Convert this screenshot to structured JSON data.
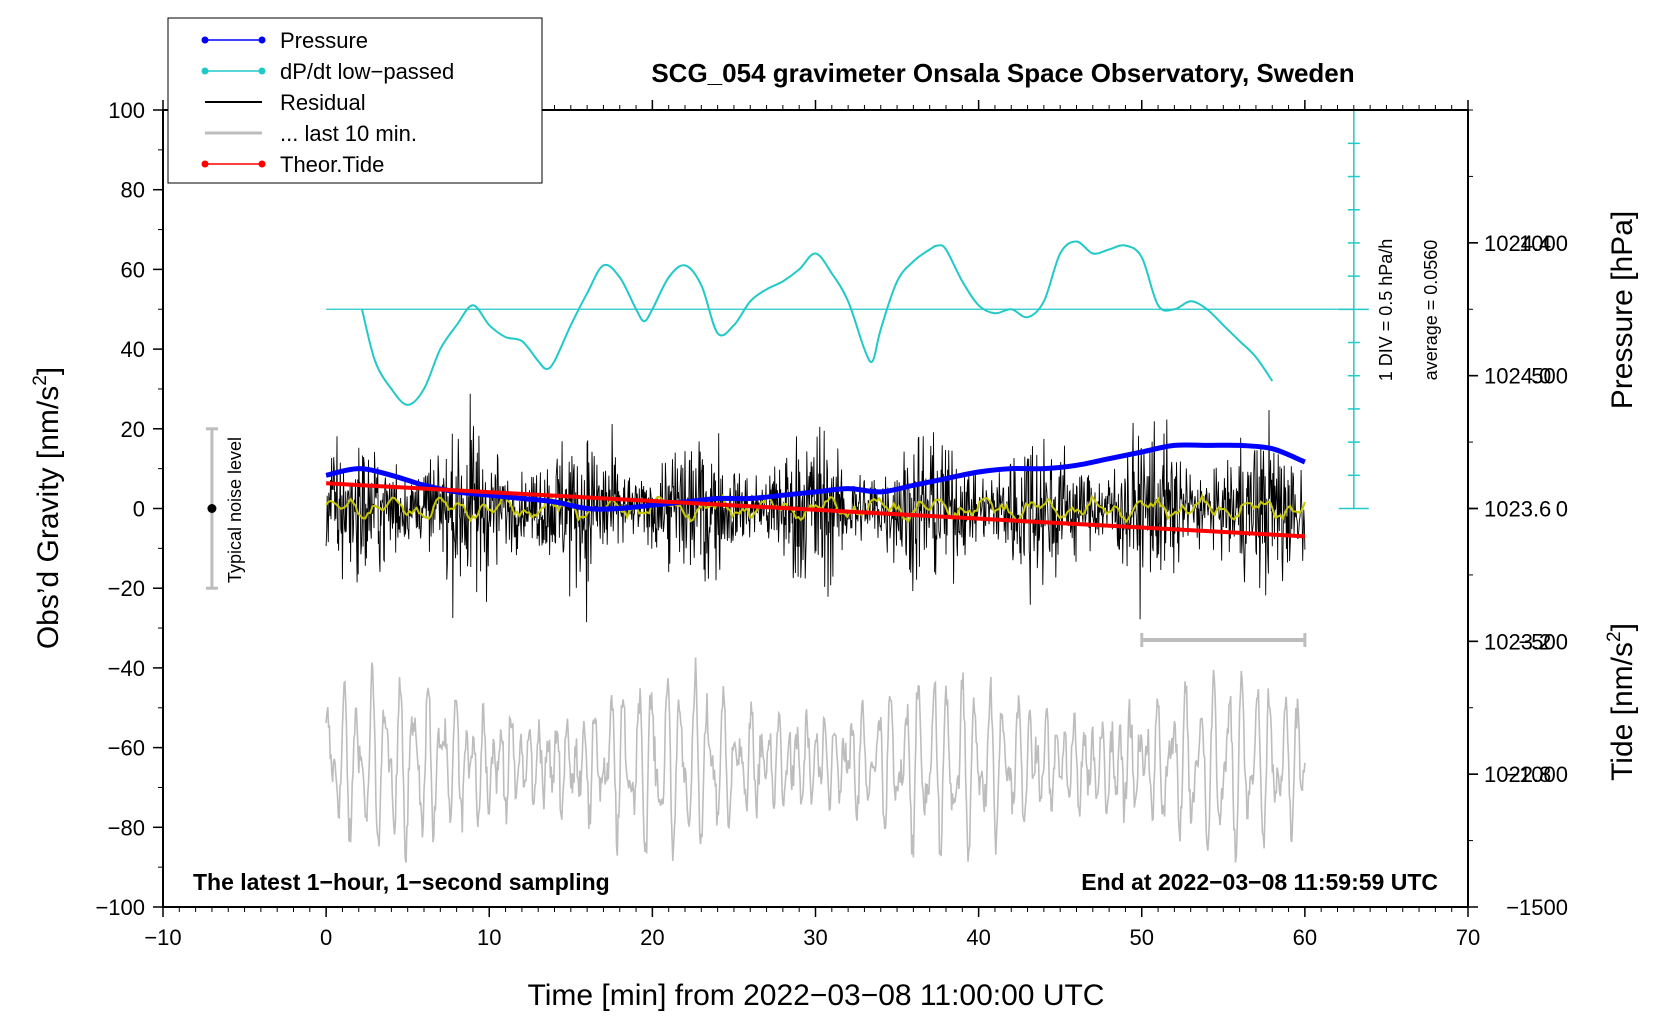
{
  "colors": {
    "pressure": "#0000ff",
    "dpdt": "#22c9c9",
    "residual": "#000000",
    "last10": "#bdbdbd",
    "tide": "#ff0000",
    "smoothed": "#c8c800",
    "noise": "#bdbdbd"
  },
  "chart_data": {
    "type": "line",
    "title": "SCG_054 gravimeter Onsala Space Observatory, Sweden",
    "xlabel": "Time [min] from 2022−03−08 11:00:00 UTC",
    "ylabel_left_main": "Obs’d Gravity [nm/s",
    "ylabel_left_sup": "2",
    "ylabel_left_end": "]",
    "ylabel_right_pressure": "Pressure [hPa]",
    "ylabel_right_tide_main": "Tide [nm/s",
    "ylabel_right_tide_sup": "2",
    "ylabel_right_tide_end": "]",
    "xlim": [
      -10,
      70
    ],
    "ylim_left": [
      -100,
      100
    ],
    "ylim_pressure": [
      1022.4,
      1024.8
    ],
    "ylim_tide": [
      -1500,
      1500
    ],
    "x_ticks": [
      {
        "v": -10,
        "t": "−10"
      },
      {
        "v": 0,
        "t": "0"
      },
      {
        "v": 10,
        "t": "10"
      },
      {
        "v": 20,
        "t": "20"
      },
      {
        "v": 30,
        "t": "30"
      },
      {
        "v": 40,
        "t": "40"
      },
      {
        "v": 50,
        "t": "50"
      },
      {
        "v": 60,
        "t": "60"
      },
      {
        "v": 70,
        "t": "70"
      }
    ],
    "y_ticks_left": [
      {
        "v": 100,
        "t": "100"
      },
      {
        "v": 80,
        "t": "80"
      },
      {
        "v": 60,
        "t": "60"
      },
      {
        "v": 40,
        "t": "40"
      },
      {
        "v": 20,
        "t": "20"
      },
      {
        "v": 0,
        "t": "0"
      },
      {
        "v": -20,
        "t": "−20"
      },
      {
        "v": -40,
        "t": "−40"
      },
      {
        "v": -60,
        "t": "−60"
      },
      {
        "v": -80,
        "t": "−80"
      },
      {
        "v": -100,
        "t": "−100"
      }
    ],
    "pressure_ticks": [
      {
        "v": 1024.4,
        "t": "1024.4"
      },
      {
        "v": 1024.0,
        "t": "1024.0"
      },
      {
        "v": 1023.6,
        "t": "1023.6"
      },
      {
        "v": 1023.2,
        "t": "1023.2"
      },
      {
        "v": 1022.8,
        "t": "1022.8"
      }
    ],
    "tide_ticks": [
      {
        "v": 1000,
        "t": "1000"
      },
      {
        "v": 500,
        "t": "500"
      },
      {
        "v": 0,
        "t": "0"
      },
      {
        "v": -500,
        "t": "−500"
      },
      {
        "v": -1000,
        "t": "−1000"
      },
      {
        "v": -1500,
        "t": "−1500"
      }
    ],
    "legend": [
      {
        "label": "Pressure",
        "key": "pressure",
        "marker": true
      },
      {
        "label": "dP/dt low−passed",
        "key": "dpdt",
        "marker": true
      },
      {
        "label": "Residual",
        "key": "residual",
        "marker": false
      },
      {
        "label": "... last 10 min.",
        "key": "last10",
        "marker": false
      },
      {
        "label": "Theor.Tide",
        "key": "tide",
        "marker": true
      }
    ],
    "annotations": {
      "bottom_left": "The latest 1−hour, 1−second sampling",
      "bottom_right": "End at 2022−03−08 11:59:59 UTC",
      "noise_label": "Typical noise level",
      "div_label": "1 DIV = 0.5 hPa/h",
      "avg_label": "average = 0.0560"
    },
    "noise_bar": {
      "x": -7,
      "center": 0,
      "half_range": 20
    },
    "dpdt_scale": {
      "x": 63,
      "ylim": [
        0,
        100
      ],
      "div_step": 8.33,
      "zero_line": 50
    },
    "last10_range": [
      50,
      60
    ],
    "series": [
      {
        "name": "Pressure",
        "axis": "pressure",
        "x": [
          0,
          2,
          4,
          6,
          8,
          10,
          12,
          14,
          16,
          18,
          20,
          22,
          24,
          26,
          28,
          30,
          32,
          34,
          36,
          38,
          40,
          42,
          44,
          46,
          48,
          50,
          52,
          54,
          56,
          58,
          60
        ],
        "y": [
          1023.7,
          1023.72,
          1023.7,
          1023.67,
          1023.65,
          1023.64,
          1023.63,
          1023.62,
          1023.6,
          1023.6,
          1023.61,
          1023.62,
          1023.63,
          1023.63,
          1023.64,
          1023.65,
          1023.66,
          1023.65,
          1023.67,
          1023.69,
          1023.71,
          1023.72,
          1023.72,
          1023.73,
          1023.75,
          1023.77,
          1023.79,
          1023.79,
          1023.79,
          1023.78,
          1023.74
        ]
      },
      {
        "name": "dP/dt low−passed",
        "axis": "left",
        "x": [
          2.2,
          3,
          4,
          5,
          6,
          7,
          8,
          9,
          10,
          11,
          12,
          13,
          13.5,
          14,
          15,
          16,
          17,
          18,
          19,
          19.5,
          20,
          21,
          22,
          23,
          24,
          25,
          26,
          27,
          28,
          29,
          30,
          31,
          32,
          33,
          33.5,
          34,
          35,
          36,
          37,
          37.5,
          38,
          39,
          40,
          41,
          42,
          43,
          44,
          45,
          46,
          47,
          48,
          49,
          50,
          51,
          52,
          53,
          54,
          55,
          56,
          57,
          58
        ],
        "y": [
          50,
          37,
          30,
          26,
          30,
          40,
          46,
          51,
          46,
          43,
          42,
          37,
          35,
          37,
          46,
          54,
          61,
          58,
          50,
          47,
          50,
          58,
          61,
          56,
          44,
          46,
          52,
          55,
          57,
          60,
          64,
          59,
          52,
          40,
          37,
          45,
          57,
          62,
          65,
          66,
          65,
          57,
          51,
          49,
          50,
          48,
          52,
          64,
          67,
          64,
          65,
          66,
          63,
          51,
          50,
          52,
          50,
          46,
          42,
          38,
          32
        ]
      },
      {
        "name": "Theor.Tide",
        "axis": "tide",
        "x": [
          0,
          60
        ],
        "y": [
          95,
          -105
        ]
      }
    ]
  }
}
